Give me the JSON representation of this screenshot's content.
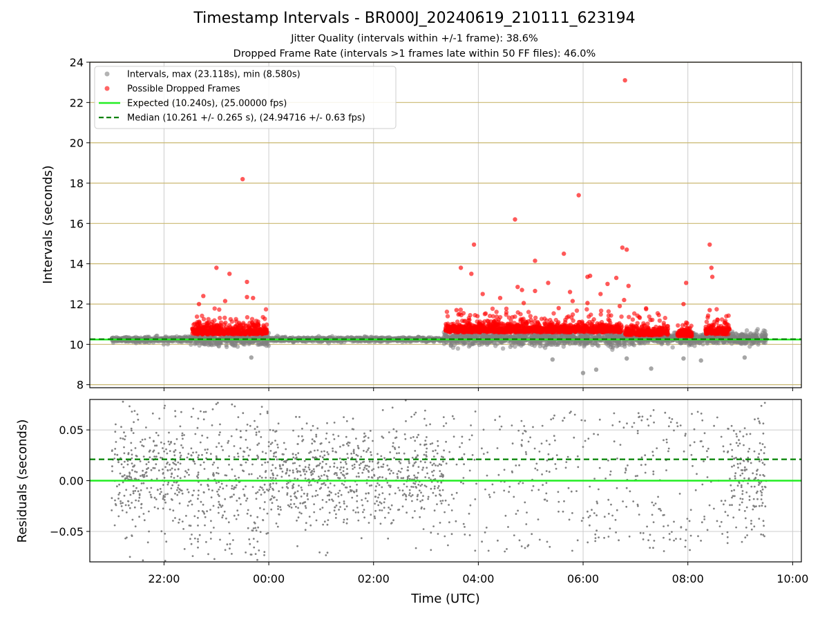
{
  "figure": {
    "title": "Timestamp Intervals - BR000J_20240619_210111_623194",
    "subtitle_1": "Jitter Quality (intervals within +/-1 frame): 38.6%",
    "subtitle_2": "Dropped Frame Rate (intervals >1 frames late within 50 FF files): 46.0%"
  },
  "colors": {
    "intervals": "#808080",
    "dropped": "#ff0000",
    "expected": "#22ee22",
    "median": "#008000",
    "top_grid": "#c9b870",
    "grid": "#cccccc"
  },
  "chart_data": [
    {
      "type": "scatter",
      "panel": "top",
      "ylabel": "Intervals (seconds)",
      "xlim": [
        "20:35",
        "10:10"
      ],
      "ylim": [
        7.85,
        24
      ],
      "yticks": [
        "8",
        "10",
        "12",
        "14",
        "16",
        "18",
        "20",
        "22",
        "24"
      ],
      "horizontal_gridlines": "golden",
      "vertical_gridlines": true,
      "legend_position": "upper-left",
      "legend": [
        {
          "key": "intervals",
          "label": "Intervals, max (23.118s), min (8.580s)",
          "marker": "dot",
          "color": "#808080"
        },
        {
          "key": "dropped",
          "label": "Possible Dropped Frames",
          "marker": "dot",
          "color": "#ff0000"
        },
        {
          "key": "expected",
          "label": "Expected (10.240s), (25.00000 fps)",
          "marker": "solid-line",
          "color": "#22ee22"
        },
        {
          "key": "median",
          "label": "Median (10.261 +/- 0.265 s), (24.94716 +/- 0.63 fps)",
          "marker": "dashed-line",
          "color": "#008000"
        }
      ],
      "reference_lines": {
        "expected": 10.24,
        "median": 10.261
      },
      "series": [
        {
          "name": "Intervals, max (23.118s), min (8.580s)",
          "description": "dense band of points around 10.25 s over the whole night",
          "segments": [
            {
              "start": "21:00",
              "end": "22:30",
              "center": 10.25,
              "spread": 0.12
            },
            {
              "start": "22:30",
              "end": "00:00",
              "center": 10.25,
              "spread": 0.3
            },
            {
              "start": "00:00",
              "end": "03:20",
              "center": 10.25,
              "spread": 0.1
            },
            {
              "start": "03:20",
              "end": "07:00",
              "center": 10.3,
              "spread": 0.35
            },
            {
              "start": "07:00",
              "end": "09:30",
              "center": 10.3,
              "spread": 0.28
            }
          ],
          "outliers": [
            {
              "x": "06:00",
              "y": 8.58
            },
            {
              "x": "06:15",
              "y": 8.75
            },
            {
              "x": "07:18",
              "y": 8.8
            },
            {
              "x": "05:25",
              "y": 9.25
            },
            {
              "x": "06:50",
              "y": 9.3
            },
            {
              "x": "07:55",
              "y": 9.3
            },
            {
              "x": "08:15",
              "y": 9.2
            },
            {
              "x": "09:05",
              "y": 9.35
            },
            {
              "x": "23:40",
              "y": 9.35
            }
          ]
        },
        {
          "name": "Possible Dropped Frames",
          "description": "clusters of late intervals above ~10.3 s",
          "segments": [
            {
              "start": "22:32",
              "end": "23:58",
              "base": 10.5
            },
            {
              "start": "03:22",
              "end": "06:45",
              "base": 10.6
            },
            {
              "start": "06:48",
              "end": "07:38",
              "base": 10.45
            },
            {
              "start": "07:48",
              "end": "08:05",
              "base": 10.4
            },
            {
              "start": "08:20",
              "end": "08:48",
              "base": 10.5
            }
          ],
          "outliers": [
            {
              "x": "23:30",
              "y": 18.2
            },
            {
              "x": "06:48",
              "y": 23.1
            },
            {
              "x": "05:55",
              "y": 17.4
            },
            {
              "x": "04:42",
              "y": 16.2
            },
            {
              "x": "06:45",
              "y": 14.8
            },
            {
              "x": "06:50",
              "y": 14.7
            },
            {
              "x": "08:25",
              "y": 14.95
            },
            {
              "x": "03:55",
              "y": 14.95
            },
            {
              "x": "05:38",
              "y": 14.5
            },
            {
              "x": "05:05",
              "y": 14.15
            },
            {
              "x": "23:00",
              "y": 13.8
            },
            {
              "x": "03:40",
              "y": 13.8
            },
            {
              "x": "23:15",
              "y": 13.5
            },
            {
              "x": "03:52",
              "y": 13.5
            },
            {
              "x": "08:27",
              "y": 13.8
            },
            {
              "x": "08:28",
              "y": 13.35
            },
            {
              "x": "06:08",
              "y": 13.4
            },
            {
              "x": "06:05",
              "y": 13.35
            },
            {
              "x": "23:35",
              "y": 13.1
            },
            {
              "x": "07:58",
              "y": 13.05
            },
            {
              "x": "06:52",
              "y": 12.9
            },
            {
              "x": "06:38",
              "y": 13.3
            },
            {
              "x": "05:20",
              "y": 13.05
            },
            {
              "x": "06:28",
              "y": 13.0
            },
            {
              "x": "04:45",
              "y": 12.85
            },
            {
              "x": "04:05",
              "y": 12.5
            },
            {
              "x": "22:45",
              "y": 12.4
            },
            {
              "x": "23:35",
              "y": 12.35
            },
            {
              "x": "23:42",
              "y": 12.3
            },
            {
              "x": "23:10",
              "y": 12.15
            },
            {
              "x": "04:25",
              "y": 12.3
            },
            {
              "x": "05:05",
              "y": 12.65
            },
            {
              "x": "05:45",
              "y": 12.6
            },
            {
              "x": "06:20",
              "y": 12.5
            },
            {
              "x": "07:55",
              "y": 12.0
            },
            {
              "x": "22:40",
              "y": 12.0
            },
            {
              "x": "05:48",
              "y": 12.15
            },
            {
              "x": "06:05",
              "y": 12.05
            },
            {
              "x": "04:52",
              "y": 12.05
            },
            {
              "x": "08:25",
              "y": 11.7
            },
            {
              "x": "03:35",
              "y": 11.7
            },
            {
              "x": "06:42",
              "y": 11.9
            },
            {
              "x": "04:50",
              "y": 12.7
            },
            {
              "x": "05:32",
              "y": 11.8
            },
            {
              "x": "06:47",
              "y": 12.2
            }
          ]
        }
      ]
    },
    {
      "type": "scatter",
      "panel": "bottom",
      "xlabel": "Time (UTC)",
      "ylabel": "Residuals (seconds)",
      "xlim": [
        "20:35",
        "10:10"
      ],
      "ylim": [
        -0.08,
        0.08
      ],
      "xticks": [
        "22:00",
        "00:00",
        "02:00",
        "04:00",
        "06:00",
        "08:00",
        "10:00"
      ],
      "yticks": [
        "−0.05",
        "0.00",
        "0.05"
      ],
      "grid": true,
      "reference_lines": {
        "zero": 0.0,
        "median_offset": 0.021
      },
      "series": [
        {
          "name": "residuals",
          "segments": [
            {
              "start": "21:00",
              "end": "22:30",
              "center": 0.005,
              "spread": 0.03
            },
            {
              "start": "22:30",
              "end": "00:00",
              "center": 0.0,
              "spread": 0.05
            },
            {
              "start": "00:00",
              "end": "03:20",
              "center": 0.005,
              "spread": 0.025
            },
            {
              "start": "03:20",
              "end": "08:45",
              "center": 0.0,
              "spread": 0.07,
              "sparse": true
            },
            {
              "start": "08:45",
              "end": "09:30",
              "center": 0.005,
              "spread": 0.03
            }
          ]
        }
      ]
    }
  ]
}
